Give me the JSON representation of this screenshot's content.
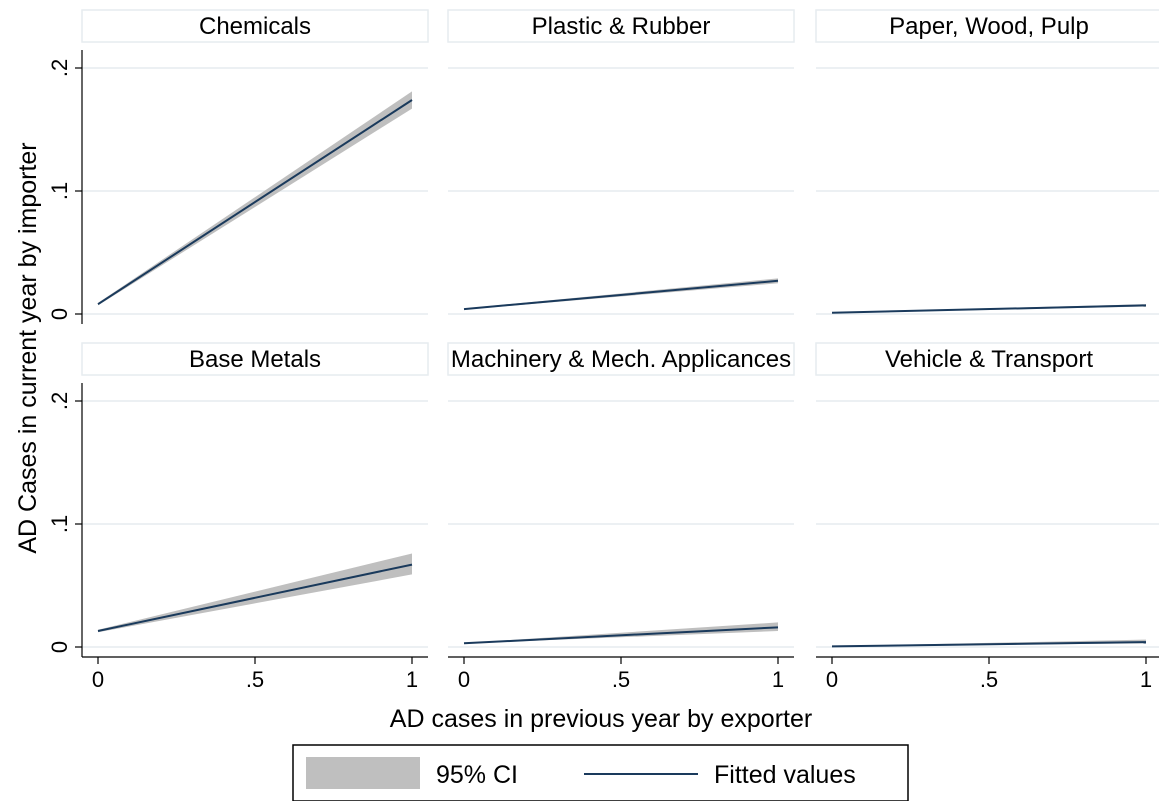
{
  "chart_data": {
    "type": "line",
    "ylabel": "AD Cases in current year by importer",
    "xlabel": "AD cases in previous year by exporter",
    "xlim": [
      0,
      1
    ],
    "ylim": [
      0,
      0.2
    ],
    "x_ticks": [
      {
        "value": 0,
        "label": "0"
      },
      {
        "value": 0.5,
        "label": ".5"
      },
      {
        "value": 1,
        "label": "1"
      }
    ],
    "y_ticks": [
      {
        "value": 0,
        "label": "0"
      },
      {
        "value": 0.1,
        "label": ".1"
      },
      {
        "value": 0.2,
        "label": ".2"
      }
    ],
    "grid": true,
    "legend": {
      "position": "bottom",
      "entries": [
        {
          "label": "95% CI",
          "kind": "band",
          "color": "#bfbfbf"
        },
        {
          "label": "Fitted values",
          "kind": "line",
          "color": "#1a3a5c"
        }
      ]
    },
    "panels": [
      {
        "title": "Chemicals",
        "fit": {
          "x": [
            0,
            1
          ],
          "y": [
            0.008,
            0.174
          ]
        },
        "ci": {
          "lower": [
            0.007,
            0.167
          ],
          "upper": [
            0.009,
            0.181
          ]
        }
      },
      {
        "title": "Plastic & Rubber",
        "fit": {
          "x": [
            0,
            1
          ],
          "y": [
            0.004,
            0.027
          ]
        },
        "ci": {
          "lower": [
            0.0035,
            0.025
          ],
          "upper": [
            0.0045,
            0.029
          ]
        }
      },
      {
        "title": "Paper, Wood, Pulp",
        "fit": {
          "x": [
            0,
            1
          ],
          "y": [
            0.001,
            0.007
          ]
        },
        "ci": {
          "lower": [
            0.0008,
            0.006
          ],
          "upper": [
            0.0012,
            0.008
          ]
        }
      },
      {
        "title": "Base Metals",
        "fit": {
          "x": [
            0,
            1
          ],
          "y": [
            0.013,
            0.067
          ]
        },
        "ci": {
          "lower": [
            0.012,
            0.059
          ],
          "upper": [
            0.014,
            0.076
          ]
        }
      },
      {
        "title": "Machinery & Mech. Applicances",
        "fit": {
          "x": [
            0,
            1
          ],
          "y": [
            0.003,
            0.016
          ]
        },
        "ci": {
          "lower": [
            0.0028,
            0.013
          ],
          "upper": [
            0.0032,
            0.02
          ]
        }
      },
      {
        "title": "Vehicle & Transport",
        "fit": {
          "x": [
            0,
            1
          ],
          "y": [
            0.0005,
            0.004
          ]
        },
        "ci": {
          "lower": [
            0.0003,
            0.003
          ],
          "upper": [
            0.0007,
            0.006
          ]
        }
      }
    ]
  }
}
